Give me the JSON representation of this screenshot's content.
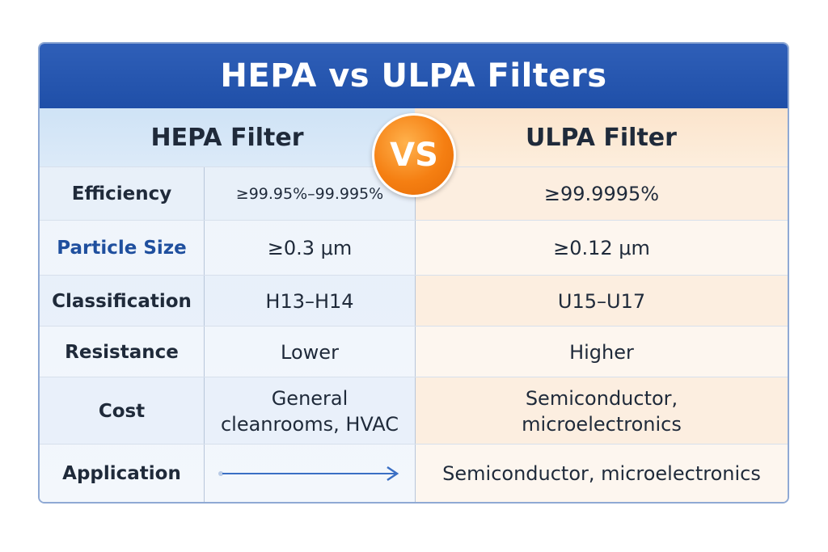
{
  "title": "HEPA vs ULPA Filters",
  "columns": {
    "left": "HEPA Filter",
    "badge": "VS",
    "right": "ULPA Filter"
  },
  "rows": [
    {
      "label": "Efficiency",
      "hepa": "≥99.95%–99.995%",
      "ulpa": "≥99.9995%"
    },
    {
      "label": "Particle Size",
      "hepa": "≥0.3 μm",
      "ulpa": "≥0.12 μm"
    },
    {
      "label": "Classification",
      "hepa": "H13–H14",
      "ulpa": "U15–U17"
    },
    {
      "label": "Resistance",
      "hepa": "Lower",
      "ulpa": "Higher"
    },
    {
      "label": "Cost",
      "hepa": "General cleanrooms, HVAC",
      "ulpa": "Semiconductor, microelectronics"
    },
    {
      "label": "Application",
      "hepa": "",
      "ulpa": "Semiconductor, microelectronics"
    }
  ],
  "colors": {
    "title_bar": "#2f5fb8",
    "badge": "#f57f12",
    "accent_label": "#1f4f9e",
    "arrow": "#3a6fc4"
  },
  "icons": {
    "application_hepa": "right-arrow-icon"
  }
}
